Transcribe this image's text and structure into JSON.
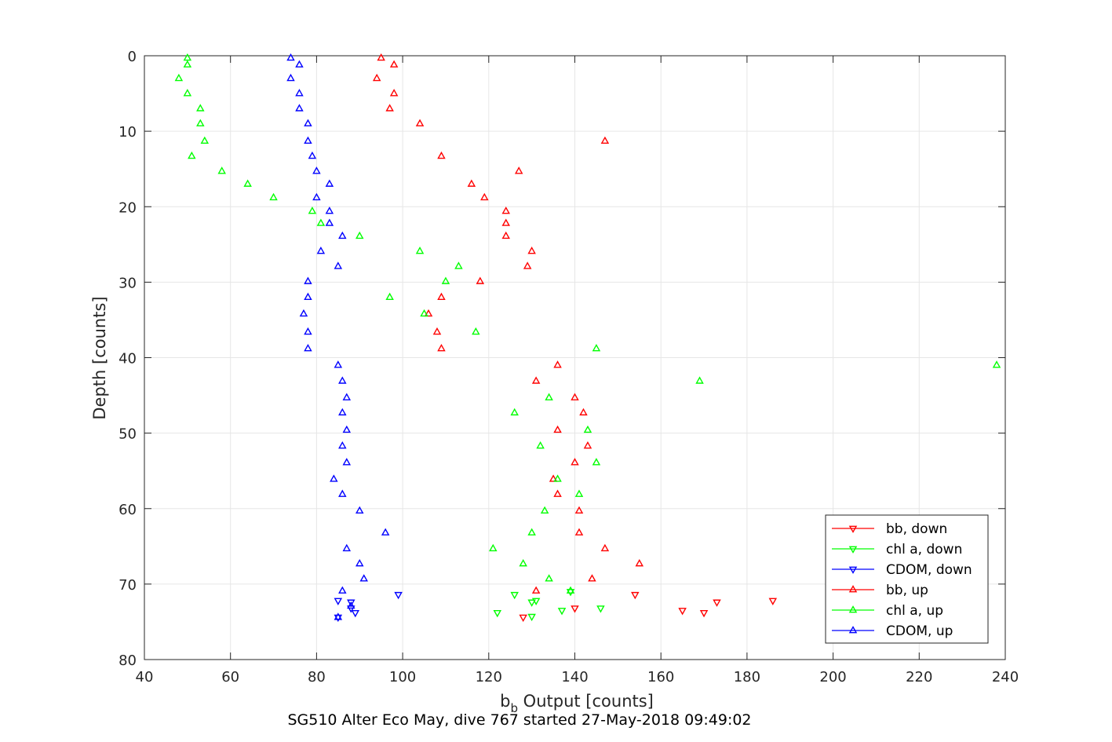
{
  "chart_data": {
    "type": "scatter",
    "xlabel_main": "b",
    "xlabel_sub": "b",
    "xlabel_rest": " Output [counts]",
    "ylabel": "Depth [counts]",
    "subtitle": "SG510 Alter Eco May, dive 767 started 27-May-2018 09:49:02",
    "xlim": [
      40,
      240
    ],
    "ylim": [
      0,
      80
    ],
    "y_reversed": true,
    "grid": true,
    "legend_position": "bottom-right",
    "x_ticks": [
      "40",
      "60",
      "80",
      "100",
      "120",
      "140",
      "160",
      "180",
      "200",
      "220",
      "240"
    ],
    "y_ticks": [
      "0",
      "10",
      "20",
      "30",
      "40",
      "50",
      "60",
      "70",
      "80"
    ],
    "series": [
      {
        "name": "bb, down",
        "color": "#ff0000",
        "marker": "triangle-down",
        "points": [
          [
            128,
            74.4
          ],
          [
            140,
            73.2
          ],
          [
            154,
            71.4
          ],
          [
            165,
            73.5
          ],
          [
            170,
            73.8
          ],
          [
            173,
            72.4
          ],
          [
            186,
            72.2
          ]
        ]
      },
      {
        "name": "chl a, down",
        "color": "#00ff00",
        "marker": "triangle-down",
        "points": [
          [
            130,
            74.3
          ],
          [
            122,
            73.8
          ],
          [
            137,
            73.5
          ],
          [
            146,
            73.2
          ],
          [
            130,
            72.4
          ],
          [
            131,
            72.2
          ],
          [
            126,
            71.4
          ],
          [
            139,
            71.0
          ]
        ]
      },
      {
        "name": "CDOM, down",
        "color": "#0000ff",
        "marker": "triangle-down",
        "points": [
          [
            85,
            74.4
          ],
          [
            89,
            73.8
          ],
          [
            88,
            73.2
          ],
          [
            85,
            72.2
          ],
          [
            88,
            72.4
          ],
          [
            99,
            71.4
          ]
        ]
      },
      {
        "name": "bb, up",
        "color": "#ff0000",
        "marker": "triangle-up",
        "points": [
          [
            95,
            0.3
          ],
          [
            98,
            1.2
          ],
          [
            94,
            3.0
          ],
          [
            98,
            5.0
          ],
          [
            97,
            7.0
          ],
          [
            104,
            9.0
          ],
          [
            147,
            11.3
          ],
          [
            109,
            13.3
          ],
          [
            127,
            15.3
          ],
          [
            116,
            17.0
          ],
          [
            119,
            18.8
          ],
          [
            124,
            20.6
          ],
          [
            124,
            22.2
          ],
          [
            124,
            23.9
          ],
          [
            130,
            25.9
          ],
          [
            129,
            27.9
          ],
          [
            118,
            29.9
          ],
          [
            109,
            32.0
          ],
          [
            106,
            34.2
          ],
          [
            108,
            36.6
          ],
          [
            109,
            38.8
          ],
          [
            136,
            41.0
          ],
          [
            131,
            43.1
          ],
          [
            140,
            45.3
          ],
          [
            142,
            47.3
          ],
          [
            136,
            49.6
          ],
          [
            143,
            51.7
          ],
          [
            140,
            53.9
          ],
          [
            135,
            56.1
          ],
          [
            136,
            58.1
          ],
          [
            141,
            60.3
          ],
          [
            141,
            63.2
          ],
          [
            147,
            65.3
          ],
          [
            155,
            67.3
          ],
          [
            144,
            69.3
          ],
          [
            131,
            70.9
          ]
        ]
      },
      {
        "name": "chl a, up",
        "color": "#00ff00",
        "marker": "triangle-up",
        "points": [
          [
            50,
            0.3
          ],
          [
            50,
            1.2
          ],
          [
            48,
            3.0
          ],
          [
            50,
            5.0
          ],
          [
            53,
            7.0
          ],
          [
            53,
            9.0
          ],
          [
            54,
            11.3
          ],
          [
            51,
            13.3
          ],
          [
            58,
            15.3
          ],
          [
            64,
            17.0
          ],
          [
            70,
            18.8
          ],
          [
            79,
            20.6
          ],
          [
            81,
            22.2
          ],
          [
            90,
            23.9
          ],
          [
            104,
            25.9
          ],
          [
            113,
            27.9
          ],
          [
            110,
            29.9
          ],
          [
            97,
            32.0
          ],
          [
            105,
            34.2
          ],
          [
            117,
            36.6
          ],
          [
            145,
            38.8
          ],
          [
            238,
            41.0
          ],
          [
            169,
            43.1
          ],
          [
            134,
            45.3
          ],
          [
            126,
            47.3
          ],
          [
            143,
            49.6
          ],
          [
            132,
            51.7
          ],
          [
            145,
            53.9
          ],
          [
            136,
            56.1
          ],
          [
            141,
            58.1
          ],
          [
            133,
            60.3
          ],
          [
            130,
            63.2
          ],
          [
            121,
            65.3
          ],
          [
            128,
            67.3
          ],
          [
            134,
            69.3
          ],
          [
            139,
            70.9
          ]
        ]
      },
      {
        "name": "CDOM, up",
        "color": "#0000ff",
        "marker": "triangle-up",
        "points": [
          [
            74,
            0.3
          ],
          [
            76,
            1.2
          ],
          [
            74,
            3.0
          ],
          [
            76,
            5.0
          ],
          [
            76,
            7.0
          ],
          [
            78,
            9.0
          ],
          [
            78,
            11.3
          ],
          [
            79,
            13.3
          ],
          [
            80,
            15.3
          ],
          [
            83,
            17.0
          ],
          [
            80,
            18.8
          ],
          [
            83,
            20.6
          ],
          [
            83,
            22.2
          ],
          [
            86,
            23.9
          ],
          [
            81,
            25.9
          ],
          [
            85,
            27.9
          ],
          [
            78,
            29.9
          ],
          [
            78,
            32.0
          ],
          [
            77,
            34.2
          ],
          [
            78,
            36.6
          ],
          [
            78,
            38.8
          ],
          [
            85,
            41.0
          ],
          [
            86,
            43.1
          ],
          [
            87,
            45.3
          ],
          [
            86,
            47.3
          ],
          [
            87,
            49.6
          ],
          [
            86,
            51.7
          ],
          [
            87,
            53.9
          ],
          [
            84,
            56.1
          ],
          [
            86,
            58.1
          ],
          [
            90,
            60.3
          ],
          [
            96,
            63.2
          ],
          [
            87,
            65.3
          ],
          [
            90,
            67.3
          ],
          [
            91,
            69.3
          ],
          [
            86,
            70.9
          ],
          [
            88,
            72.9
          ],
          [
            85,
            74.4
          ]
        ]
      }
    ]
  }
}
